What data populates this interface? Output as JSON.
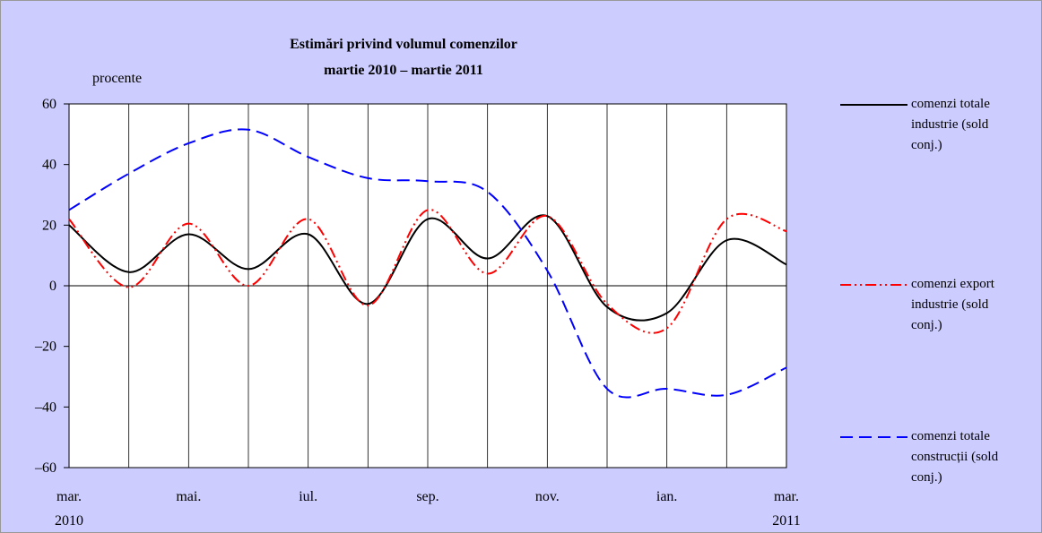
{
  "chart_data": {
    "type": "line",
    "title": "Estimări privind volumul comenzilor",
    "subtitle": "martie 2010 – martie 2011",
    "y_label": "procente",
    "categories": [
      "mar. 2010",
      null,
      "mai.",
      null,
      "iul.",
      null,
      "sep.",
      null,
      "nov.",
      null,
      "ian.",
      null,
      "mar. 2011"
    ],
    "series": [
      {
        "name": "comenzi totale industrie (sold conj.)",
        "color": "#000000",
        "style": "solid",
        "values": [
          20,
          4.5,
          17,
          5.5,
          17,
          -6,
          22,
          9,
          23,
          -7,
          -9,
          15,
          7
        ]
      },
      {
        "name": "comenzi export industrie (sold conj.)",
        "color": "#ff0000",
        "style": "dashdotdot",
        "values": [
          22,
          -0.5,
          20.5,
          0,
          22,
          -6.5,
          25,
          4,
          23,
          -6,
          -14,
          22,
          18
        ]
      },
      {
        "name": "comenzi totale construcții (sold conj.)",
        "color": "#0000ff",
        "style": "dashed",
        "values": [
          25,
          37,
          47,
          51.5,
          42.5,
          35.5,
          34.5,
          31,
          5,
          -34,
          -34,
          -36,
          -27
        ]
      }
    ],
    "ylim": [
      -60,
      60
    ],
    "yticks": [
      {
        "value": -60,
        "label": "–60"
      },
      {
        "value": -40,
        "label": "–40"
      },
      {
        "value": -20,
        "label": "–20"
      },
      0,
      20,
      40,
      60
    ],
    "grid": "vertical",
    "legend": "right"
  }
}
